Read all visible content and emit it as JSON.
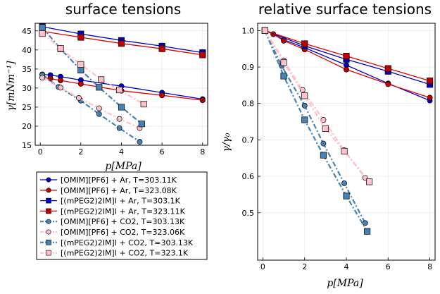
{
  "chart_data": [
    {
      "type": "line",
      "title": "surface tensions",
      "xlabel": "p[MPa]",
      "ylabel": "γ[mNm⁻¹]",
      "xlim": [
        -0.25,
        8.25
      ],
      "ylim": [
        15,
        47
      ],
      "xticks": [
        0,
        2,
        4,
        6,
        8
      ],
      "yticks": [
        15,
        20,
        25,
        30,
        35,
        40,
        45
      ],
      "xtick_labels": [
        "0",
        "2",
        "4",
        "6",
        "8"
      ],
      "ytick_labels": [
        "15",
        "20",
        "25",
        "30",
        "35",
        "40",
        "45"
      ],
      "grid": true,
      "series": [
        {
          "name": "[OMIM][PF6] + Ar, T=303.11K",
          "x": [
            0.1,
            0.5,
            1.0,
            2.0,
            4.0,
            6.0,
            8.0
          ],
          "y": [
            33.6,
            33.4,
            33.0,
            32.1,
            30.5,
            28.8,
            27.1
          ]
        },
        {
          "name": "[OMIM][PF6] + Ar, T=323.08K",
          "x": [
            0.1,
            0.5,
            1.0,
            2.0,
            4.0,
            6.0,
            8.0
          ],
          "y": [
            32.8,
            32.5,
            32.0,
            31.1,
            29.3,
            28.1,
            26.8
          ]
        },
        {
          "name": "[(mPEG2)2IM]I + Ar, T=303.1K",
          "x": [
            0.1,
            2.0,
            4.0,
            6.0,
            8.0
          ],
          "y": [
            46.1,
            44.2,
            42.5,
            41.0,
            39.3
          ]
        },
        {
          "name": "[(mPEG2)2IM]I + Ar, T=323.11K",
          "x": [
            0.1,
            2.0,
            4.0,
            6.0,
            8.0
          ],
          "y": [
            44.9,
            43.3,
            41.7,
            40.3,
            38.7
          ]
        },
        {
          "name": "[OMIM][PF6] + CO2, T=303.13K",
          "x": [
            0.1,
            0.9,
            2.0,
            2.9,
            3.9,
            4.9
          ],
          "y": [
            33.5,
            30.3,
            26.7,
            23.2,
            19.5,
            15.9
          ]
        },
        {
          "name": "[OMIM][PF6] + CO2, T=323.06K",
          "x": [
            0.1,
            1.0,
            1.9,
            2.9,
            3.9,
            4.9
          ],
          "y": [
            32.7,
            30.1,
            27.4,
            24.7,
            21.9,
            19.5
          ]
        },
        {
          "name": "[(mPEG2)2IM]I + CO2, T=303.13K",
          "x": [
            0.1,
            1.0,
            2.0,
            2.9,
            4.0,
            5.0
          ],
          "y": [
            45.9,
            40.3,
            34.7,
            30.2,
            25.0,
            20.6
          ]
        },
        {
          "name": "[(mPEG2)2IM]I + CO2, T=323.1K",
          "x": [
            0.1,
            1.0,
            2.0,
            3.0,
            3.9,
            5.1
          ],
          "y": [
            44.3,
            40.4,
            36.2,
            32.2,
            29.5,
            25.8
          ]
        }
      ]
    },
    {
      "type": "line",
      "title": "relative surface tensions",
      "xlabel": "p[MPa]",
      "ylabel": "γ/γ₀",
      "xlim": [
        -0.25,
        8.25
      ],
      "ylim": [
        0.37,
        1.02
      ],
      "xticks": [
        0,
        2,
        4,
        6,
        8
      ],
      "yticks": [
        0.5,
        0.6,
        0.7,
        0.8,
        0.9,
        1.0
      ],
      "xtick_labels": [
        "0",
        "2",
        "4",
        "6",
        "8"
      ],
      "ytick_labels": [
        "0.5",
        "0.6",
        "0.7",
        "0.8",
        "0.9",
        "1.0"
      ],
      "grid": true,
      "series": [
        {
          "name": "[OMIM][PF6] + Ar, T=303.11K",
          "x": [
            0.1,
            0.5,
            1.0,
            2.0,
            4.0,
            6.0,
            8.0
          ],
          "y": [
            1.0,
            0.99,
            0.975,
            0.953,
            0.905,
            0.855,
            0.808
          ]
        },
        {
          "name": "[OMIM][PF6] + Ar, T=323.08K",
          "x": [
            0.1,
            0.5,
            1.0,
            2.0,
            4.0,
            6.0,
            8.0
          ],
          "y": [
            1.0,
            0.99,
            0.972,
            0.948,
            0.893,
            0.853,
            0.816
          ]
        },
        {
          "name": "[(mPEG2)2IM]I + Ar, T=303.1K",
          "x": [
            0.1,
            2.0,
            4.0,
            6.0,
            8.0
          ],
          "y": [
            1.0,
            0.958,
            0.921,
            0.888,
            0.852
          ]
        },
        {
          "name": "[(mPEG2)2IM]I + Ar, T=323.11K",
          "x": [
            0.1,
            2.0,
            4.0,
            6.0,
            8.0
          ],
          "y": [
            1.0,
            0.964,
            0.93,
            0.896,
            0.862
          ]
        },
        {
          "name": "[OMIM][PF6] + CO2, T=303.13K",
          "x": [
            0.1,
            0.9,
            2.0,
            2.9,
            3.9,
            4.9
          ],
          "y": [
            1.0,
            0.903,
            0.794,
            0.69,
            0.581,
            0.472
          ]
        },
        {
          "name": "[OMIM][PF6] + CO2, T=323.06K",
          "x": [
            0.1,
            1.0,
            1.9,
            2.9,
            3.9,
            4.9
          ],
          "y": [
            1.0,
            0.918,
            0.837,
            0.755,
            0.672,
            0.596
          ]
        },
        {
          "name": "[(mPEG2)2IM]I + CO2, T=303.13K",
          "x": [
            0.1,
            1.0,
            2.0,
            2.9,
            4.0,
            5.0
          ],
          "y": [
            1.0,
            0.875,
            0.755,
            0.658,
            0.546,
            0.449
          ]
        },
        {
          "name": "[(mPEG2)2IM]I + CO2, T=323.1K",
          "x": [
            0.1,
            1.0,
            2.0,
            3.0,
            3.9,
            5.1
          ],
          "y": [
            1.0,
            0.912,
            0.821,
            0.731,
            0.669,
            0.585
          ]
        }
      ]
    }
  ],
  "styles": [
    {
      "color": "#0000cd",
      "marker": "circle",
      "dash": "solid",
      "fill": "#0000cd"
    },
    {
      "color": "#e00000",
      "marker": "circle",
      "dash": "solid",
      "fill": "#c00000"
    },
    {
      "color": "#0000cd",
      "marker": "square",
      "dash": "solid",
      "fill": "#0000cd"
    },
    {
      "color": "#e00000",
      "marker": "square",
      "dash": "solid",
      "fill": "#c00000"
    },
    {
      "color": "#4682b4",
      "marker": "circle",
      "dash": "dashdot",
      "fill": "#4682b4"
    },
    {
      "color": "#ffc0cb",
      "marker": "circle",
      "dash": "dashdot",
      "fill": "#ffc0cb"
    },
    {
      "color": "#4682b4",
      "marker": "square",
      "dash": "dashdot",
      "fill": "#4682b4"
    },
    {
      "color": "#ffc0cb",
      "marker": "square",
      "dash": "dashdot",
      "fill": "#ffc0cb"
    }
  ]
}
